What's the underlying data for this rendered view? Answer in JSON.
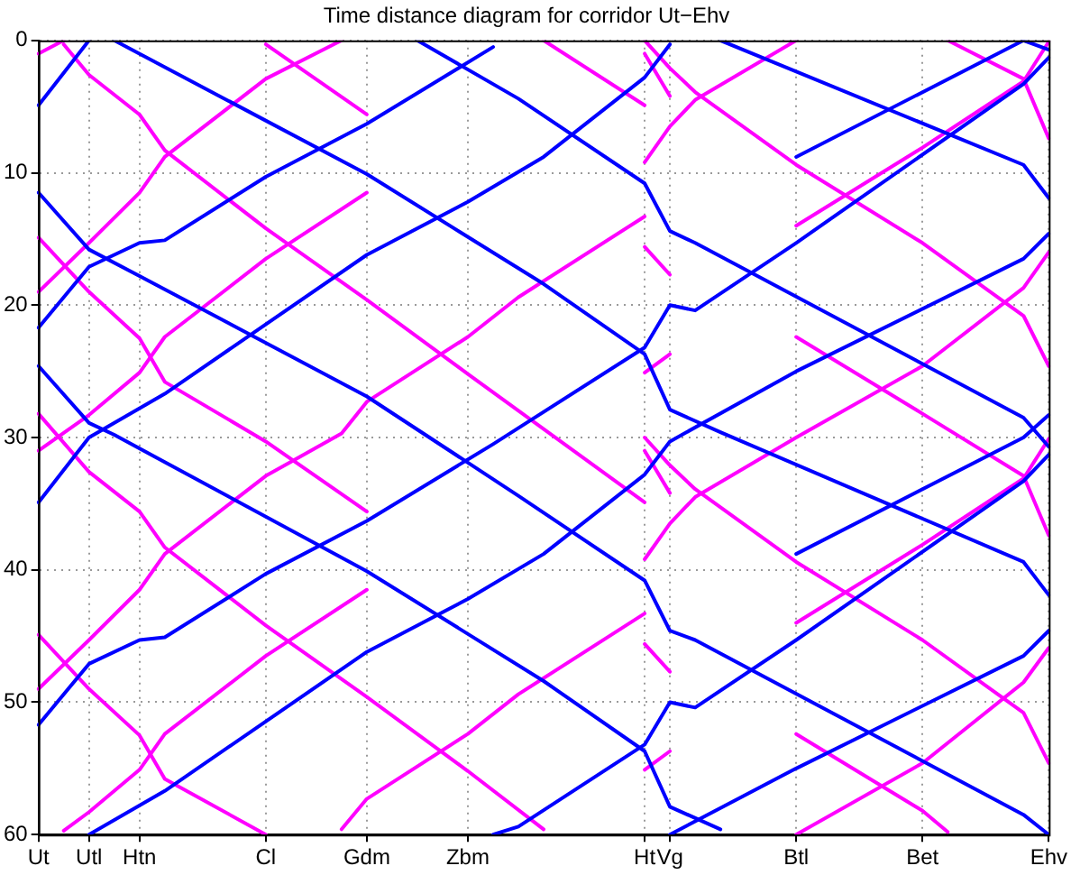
{
  "chart_data": {
    "type": "line",
    "title": "Time distance diagram for corridor Ut−Ehv",
    "categories": [
      "Ut",
      null,
      "Utl",
      null,
      "Htn",
      null,
      null,
      null,
      null,
      "Cl",
      null,
      null,
      null,
      "Gdm",
      null,
      null,
      null,
      "Zbm",
      null,
      null,
      null,
      null,
      null,
      null,
      "Ht",
      "Vg",
      null,
      null,
      null,
      null,
      "Btl",
      null,
      null,
      null,
      null,
      "Bet",
      null,
      null,
      null,
      null,
      "Ehv"
    ],
    "ylim": [
      60,
      0
    ],
    "yticks": [
      0,
      10,
      20,
      30,
      40,
      50,
      60
    ],
    "grid": true,
    "line_style": "solid",
    "series": [
      {
        "color": "#0000ff",
        "values": [
          11.5,
          null,
          15.8,
          null,
          17.8,
          null,
          null,
          null,
          null,
          null,
          null,
          null,
          null,
          26.9,
          null,
          null,
          null,
          null,
          null,
          34.4,
          null,
          null,
          null,
          null,
          40.8,
          44.6,
          45.3,
          null,
          null,
          null,
          null,
          null,
          null,
          null,
          null,
          null,
          null,
          null,
          null,
          58.5,
          60
        ]
      },
      {
        "color": "#0000ff",
        "values": [
          null,
          null,
          null,
          null,
          null,
          null,
          null,
          null,
          null,
          null,
          null,
          null,
          null,
          null,
          null,
          0,
          null,
          null,
          null,
          4.4,
          null,
          null,
          null,
          null,
          10.8,
          14.4,
          15.3,
          null,
          null,
          null,
          null,
          null,
          null,
          null,
          null,
          null,
          null,
          null,
          null,
          28.5,
          30.7
        ]
      },
      {
        "color": "#0000ff",
        "values": [
          null,
          null,
          null,
          null,
          null,
          null,
          null,
          null,
          null,
          null,
          null,
          null,
          null,
          null,
          null,
          null,
          null,
          null,
          null,
          null,
          null,
          null,
          null,
          null,
          null,
          null,
          null,
          null,
          null,
          null,
          null,
          null,
          null,
          null,
          null,
          null,
          null,
          null,
          null,
          0,
          0.7
        ]
      },
      {
        "color": "#0000ff",
        "values": [
          24.6,
          null,
          28.9,
          29.8,
          null,
          null,
          null,
          null,
          null,
          null,
          null,
          null,
          null,
          40.1,
          null,
          null,
          null,
          null,
          null,
          null,
          48.4,
          null,
          null,
          null,
          53.7,
          57.9,
          null,
          59.6,
          null,
          null,
          null,
          null,
          null,
          null,
          null,
          null,
          null,
          null,
          null,
          null,
          null
        ]
      },
      {
        "color": "#0000ff",
        "values": [
          null,
          null,
          null,
          0,
          null,
          null,
          null,
          null,
          null,
          null,
          null,
          null,
          null,
          10.1,
          null,
          null,
          null,
          null,
          null,
          null,
          18.4,
          null,
          null,
          null,
          23.7,
          27.9,
          null,
          29.6,
          null,
          null,
          null,
          null,
          null,
          null,
          null,
          null,
          null,
          null,
          null,
          39.4,
          41.9
        ]
      },
      {
        "color": "#0000ff",
        "values": [
          null,
          null,
          null,
          null,
          null,
          null,
          null,
          null,
          null,
          null,
          null,
          null,
          null,
          null,
          null,
          null,
          null,
          null,
          null,
          null,
          null,
          null,
          null,
          null,
          null,
          null,
          null,
          0,
          null,
          null,
          null,
          null,
          null,
          null,
          null,
          null,
          null,
          null,
          null,
          9.4,
          11.9
        ]
      },
      {
        "color": "#0000ff",
        "values": [
          21.7,
          null,
          17.1,
          null,
          15.3,
          15.1,
          null,
          null,
          null,
          10.3,
          null,
          null,
          null,
          6.3,
          null,
          null,
          null,
          null,
          0.5,
          null,
          null,
          null,
          null,
          null,
          null,
          null,
          null,
          null,
          null,
          null,
          null,
          null,
          null,
          null,
          null,
          null,
          null,
          null,
          null,
          null,
          null
        ]
      },
      {
        "color": "#0000ff",
        "values": [
          51.7,
          null,
          47.1,
          null,
          45.3,
          45.1,
          null,
          null,
          null,
          40.3,
          null,
          null,
          null,
          36.3,
          null,
          null,
          null,
          null,
          30.5,
          null,
          null,
          null,
          null,
          null,
          23.2,
          20,
          20.4,
          null,
          null,
          null,
          15.3,
          null,
          null,
          null,
          null,
          null,
          null,
          null,
          null,
          3.3,
          1.3
        ]
      },
      {
        "color": "#0000ff",
        "values": [
          null,
          null,
          null,
          null,
          null,
          null,
          null,
          null,
          null,
          null,
          null,
          null,
          null,
          null,
          null,
          null,
          null,
          null,
          60,
          59.4,
          null,
          null,
          null,
          null,
          53.2,
          50,
          50.4,
          null,
          null,
          null,
          45.3,
          null,
          null,
          null,
          null,
          null,
          null,
          null,
          null,
          33.3,
          31.3
        ]
      },
      {
        "color": "#0000ff",
        "values": [
          4.9,
          null,
          0,
          null,
          null,
          null,
          null,
          null,
          null,
          null,
          null,
          null,
          null,
          null,
          null,
          null,
          null,
          null,
          null,
          null,
          null,
          null,
          null,
          null,
          null,
          null,
          null,
          null,
          null,
          null,
          null,
          null,
          null,
          null,
          null,
          null,
          null,
          null,
          null,
          null,
          null
        ]
      },
      {
        "color": "#0000ff",
        "values": [
          34.9,
          null,
          30,
          null,
          null,
          26.7,
          null,
          null,
          null,
          null,
          null,
          null,
          null,
          16.2,
          null,
          null,
          null,
          12.2,
          null,
          null,
          8.8,
          null,
          null,
          null,
          2.8,
          0.3,
          null,
          null,
          null,
          null,
          null,
          null,
          null,
          null,
          null,
          null,
          null,
          null,
          null,
          null,
          null
        ]
      },
      {
        "color": "#0000ff",
        "values": [
          null,
          null,
          60,
          null,
          null,
          56.7,
          null,
          null,
          null,
          null,
          null,
          null,
          null,
          46.2,
          null,
          null,
          null,
          42.2,
          null,
          null,
          38.8,
          null,
          null,
          null,
          32.8,
          30.3,
          null,
          null,
          null,
          null,
          25,
          null,
          null,
          null,
          null,
          null,
          null,
          null,
          null,
          16.5,
          14.6
        ]
      },
      {
        "color": "#0000ff",
        "values": [
          null,
          null,
          null,
          null,
          null,
          null,
          null,
          null,
          null,
          null,
          null,
          null,
          null,
          null,
          null,
          null,
          null,
          null,
          null,
          null,
          null,
          null,
          null,
          null,
          null,
          60,
          null,
          null,
          null,
          null,
          55,
          null,
          null,
          null,
          null,
          null,
          null,
          null,
          null,
          46.5,
          44.6
        ]
      },
      {
        "color": "#0000ff",
        "values": [
          null,
          null,
          null,
          null,
          null,
          null,
          null,
          null,
          null,
          null,
          null,
          null,
          null,
          null,
          null,
          null,
          null,
          null,
          null,
          null,
          null,
          null,
          null,
          null,
          null,
          null,
          null,
          null,
          null,
          null,
          8.8,
          null,
          null,
          null,
          null,
          null,
          null,
          null,
          null,
          0,
          null
        ]
      },
      {
        "color": "#0000ff",
        "values": [
          null,
          null,
          null,
          null,
          null,
          null,
          null,
          null,
          null,
          null,
          null,
          null,
          null,
          null,
          null,
          null,
          null,
          null,
          null,
          null,
          null,
          null,
          null,
          null,
          null,
          null,
          null,
          null,
          null,
          null,
          38.8,
          null,
          null,
          null,
          null,
          null,
          null,
          null,
          null,
          30,
          28.3
        ]
      },
      {
        "color": "#ff00ff",
        "values": [
          null,
          0.3,
          2.6,
          null,
          5.6,
          8.3,
          null,
          null,
          null,
          14.2,
          null,
          null,
          null,
          19.6,
          null,
          null,
          null,
          25.2,
          null,
          null,
          null,
          null,
          null,
          null,
          34.9,
          null,
          null,
          null,
          null,
          null,
          null,
          null,
          null,
          null,
          null,
          null,
          null,
          null,
          null,
          null,
          null
        ]
      },
      {
        "color": "#ff00ff",
        "values": [
          28.2,
          null,
          32.6,
          null,
          35.6,
          38.3,
          null,
          null,
          null,
          44.2,
          null,
          null,
          null,
          49.6,
          null,
          null,
          null,
          55.2,
          null,
          null,
          59.6,
          null,
          null,
          null,
          null,
          null,
          null,
          null,
          null,
          null,
          null,
          null,
          null,
          null,
          null,
          null,
          null,
          null,
          null,
          null,
          null
        ]
      },
      {
        "color": "#ff00ff",
        "values": [
          null,
          null,
          null,
          null,
          null,
          null,
          null,
          null,
          null,
          null,
          null,
          null,
          null,
          null,
          null,
          null,
          null,
          null,
          null,
          null,
          0,
          null,
          null,
          null,
          4.9,
          null,
          null,
          null,
          null,
          null,
          null,
          null,
          null,
          null,
          null,
          null,
          null,
          null,
          null,
          null,
          null
        ]
      },
      {
        "color": "#ff00ff",
        "values": [
          14.9,
          null,
          19,
          null,
          22.5,
          25.8,
          null,
          null,
          null,
          30.3,
          null,
          null,
          null,
          35.6,
          null,
          null,
          null,
          null,
          null,
          null,
          null,
          null,
          null,
          null,
          null,
          null,
          null,
          null,
          null,
          null,
          null,
          null,
          null,
          null,
          null,
          null,
          null,
          null,
          null,
          null,
          null
        ]
      },
      {
        "color": "#ff00ff",
        "values": [
          null,
          null,
          null,
          null,
          null,
          null,
          null,
          null,
          null,
          0.3,
          null,
          null,
          null,
          5.6,
          null,
          null,
          null,
          null,
          null,
          null,
          null,
          null,
          null,
          null,
          null,
          null,
          null,
          null,
          null,
          null,
          null,
          null,
          null,
          null,
          null,
          null,
          null,
          null,
          null,
          null,
          null
        ]
      },
      {
        "color": "#ff00ff",
        "values": [
          44.9,
          null,
          49,
          null,
          52.5,
          55.8,
          null,
          null,
          null,
          60,
          null,
          null,
          null,
          null,
          null,
          null,
          null,
          null,
          null,
          null,
          null,
          null,
          null,
          null,
          null,
          null,
          null,
          null,
          null,
          null,
          null,
          null,
          null,
          null,
          null,
          null,
          null,
          null,
          null,
          null,
          null
        ]
      },
      {
        "color": "#ff00ff",
        "values": [
          19,
          null,
          15.3,
          null,
          11.5,
          8.8,
          null,
          null,
          null,
          2.9,
          null,
          null,
          0,
          null,
          null,
          null,
          null,
          null,
          null,
          null,
          null,
          null,
          null,
          null,
          null,
          null,
          null,
          null,
          null,
          null,
          null,
          null,
          null,
          null,
          null,
          null,
          null,
          null,
          null,
          null,
          null
        ]
      },
      {
        "color": "#ff00ff",
        "values": [
          49,
          null,
          45.3,
          null,
          41.5,
          38.8,
          null,
          null,
          null,
          32.9,
          null,
          null,
          29.7,
          27.3,
          null,
          null,
          null,
          22.4,
          null,
          19.4,
          null,
          null,
          null,
          null,
          13.3,
          null,
          null,
          null,
          null,
          null,
          null,
          null,
          null,
          null,
          null,
          null,
          null,
          null,
          null,
          null,
          null
        ]
      },
      {
        "color": "#ff00ff",
        "values": [
          null,
          null,
          null,
          null,
          null,
          null,
          null,
          null,
          null,
          null,
          null,
          null,
          59.6,
          57.3,
          null,
          null,
          null,
          52.4,
          null,
          49.4,
          null,
          null,
          null,
          null,
          43.3,
          null,
          null,
          null,
          null,
          null,
          null,
          null,
          null,
          null,
          null,
          null,
          null,
          null,
          null,
          null,
          null
        ]
      },
      {
        "color": "#ff00ff",
        "values": [
          31,
          null,
          28.3,
          null,
          25.1,
          22.4,
          null,
          null,
          null,
          16.5,
          null,
          null,
          null,
          11.5,
          null,
          null,
          null,
          null,
          null,
          null,
          null,
          null,
          null,
          null,
          null,
          null,
          null,
          null,
          null,
          null,
          null,
          null,
          null,
          null,
          null,
          null,
          null,
          null,
          null,
          null,
          null
        ]
      },
      {
        "color": "#ff00ff",
        "values": [
          1,
          0,
          null,
          null,
          null,
          null,
          null,
          null,
          null,
          null,
          null,
          null,
          null,
          null,
          null,
          null,
          null,
          null,
          null,
          null,
          null,
          null,
          null,
          null,
          null,
          null,
          null,
          null,
          null,
          null,
          null,
          null,
          null,
          null,
          null,
          null,
          null,
          null,
          null,
          null,
          null
        ]
      },
      {
        "color": "#ff00ff",
        "values": [
          null,
          59.7,
          58.3,
          null,
          55.1,
          52.4,
          null,
          null,
          null,
          46.5,
          null,
          null,
          null,
          41.5,
          null,
          null,
          null,
          null,
          null,
          null,
          null,
          null,
          null,
          null,
          null,
          null,
          null,
          null,
          null,
          null,
          null,
          null,
          null,
          null,
          null,
          null,
          null,
          null,
          null,
          null,
          null
        ]
      },
      {
        "color": "#ff00ff",
        "values": [
          null,
          null,
          null,
          null,
          null,
          null,
          null,
          null,
          null,
          null,
          null,
          null,
          null,
          null,
          null,
          null,
          null,
          null,
          null,
          null,
          null,
          null,
          null,
          null,
          0,
          2.1,
          3.9,
          null,
          null,
          null,
          9.4,
          null,
          null,
          null,
          null,
          15.3,
          null,
          null,
          null,
          20.8,
          24.6
        ]
      },
      {
        "color": "#ff00ff",
        "values": [
          null,
          null,
          null,
          null,
          null,
          null,
          null,
          null,
          null,
          null,
          null,
          null,
          null,
          null,
          null,
          null,
          null,
          null,
          null,
          null,
          null,
          null,
          null,
          null,
          30,
          32.1,
          33.9,
          null,
          null,
          null,
          39.4,
          null,
          null,
          null,
          null,
          45.3,
          null,
          null,
          null,
          50.8,
          54.6
        ]
      },
      {
        "color": "#ff00ff",
        "values": [
          null,
          null,
          null,
          null,
          null,
          null,
          null,
          null,
          null,
          null,
          null,
          null,
          null,
          null,
          null,
          null,
          null,
          null,
          null,
          null,
          null,
          null,
          null,
          null,
          null,
          null,
          null,
          null,
          null,
          null,
          22.4,
          null,
          null,
          null,
          null,
          28.2,
          null,
          null,
          null,
          32.9,
          37.4
        ]
      },
      {
        "color": "#ff00ff",
        "values": [
          null,
          null,
          null,
          null,
          null,
          null,
          null,
          null,
          null,
          null,
          null,
          null,
          null,
          null,
          null,
          null,
          null,
          null,
          null,
          null,
          null,
          null,
          null,
          null,
          null,
          null,
          null,
          null,
          null,
          null,
          null,
          null,
          null,
          null,
          null,
          null,
          0,
          null,
          null,
          2.9,
          7.4
        ]
      },
      {
        "color": "#ff00ff",
        "values": [
          null,
          null,
          null,
          null,
          null,
          null,
          null,
          null,
          null,
          null,
          null,
          null,
          null,
          null,
          null,
          null,
          null,
          null,
          null,
          null,
          null,
          null,
          null,
          null,
          null,
          null,
          null,
          null,
          null,
          null,
          52.4,
          null,
          null,
          null,
          null,
          58.2,
          59.8,
          null,
          null,
          null,
          null
        ]
      },
      {
        "color": "#ff00ff",
        "values": [
          null,
          null,
          null,
          null,
          null,
          null,
          null,
          null,
          null,
          null,
          null,
          null,
          null,
          null,
          null,
          null,
          null,
          null,
          null,
          null,
          null,
          null,
          null,
          null,
          null,
          null,
          null,
          null,
          null,
          null,
          14,
          null,
          null,
          null,
          null,
          8.1,
          null,
          null,
          null,
          3.1,
          0.1
        ]
      },
      {
        "color": "#ff00ff",
        "values": [
          null,
          null,
          null,
          null,
          null,
          null,
          null,
          null,
          null,
          null,
          null,
          null,
          null,
          null,
          null,
          null,
          null,
          null,
          null,
          null,
          null,
          null,
          null,
          null,
          null,
          null,
          null,
          null,
          null,
          null,
          44,
          null,
          null,
          null,
          null,
          38.1,
          null,
          null,
          null,
          33.1,
          30.1
        ]
      },
      {
        "color": "#ff00ff",
        "values": [
          null,
          null,
          null,
          null,
          null,
          null,
          null,
          null,
          null,
          null,
          null,
          null,
          null,
          null,
          null,
          null,
          null,
          null,
          null,
          null,
          null,
          null,
          null,
          null,
          9.2,
          6.5,
          4.5,
          null,
          null,
          null,
          0,
          null,
          null,
          null,
          null,
          null,
          null,
          null,
          null,
          null,
          null
        ]
      },
      {
        "color": "#ff00ff",
        "values": [
          null,
          null,
          null,
          null,
          null,
          null,
          null,
          null,
          null,
          null,
          null,
          null,
          null,
          null,
          null,
          null,
          null,
          null,
          null,
          null,
          null,
          null,
          null,
          null,
          39.2,
          36.5,
          34.5,
          null,
          null,
          null,
          30,
          null,
          null,
          null,
          null,
          24.6,
          null,
          null,
          null,
          18.7,
          16
        ]
      },
      {
        "color": "#ff00ff",
        "values": [
          null,
          null,
          null,
          null,
          null,
          null,
          null,
          null,
          null,
          null,
          null,
          null,
          null,
          null,
          null,
          null,
          null,
          null,
          null,
          null,
          null,
          null,
          null,
          null,
          null,
          null,
          null,
          null,
          null,
          null,
          60,
          null,
          null,
          null,
          null,
          54.6,
          null,
          null,
          null,
          48.5,
          45.9
        ]
      },
      {
        "color": "#ff00ff",
        "values": [
          null,
          null,
          null,
          null,
          null,
          null,
          null,
          null,
          null,
          null,
          null,
          null,
          null,
          null,
          null,
          null,
          null,
          null,
          null,
          null,
          null,
          null,
          null,
          null,
          1,
          4.2,
          null,
          null,
          null,
          null,
          null,
          null,
          null,
          null,
          null,
          null,
          null,
          null,
          null,
          null,
          null
        ]
      },
      {
        "color": "#ff00ff",
        "values": [
          null,
          null,
          null,
          null,
          null,
          null,
          null,
          null,
          null,
          null,
          null,
          null,
          null,
          null,
          null,
          null,
          null,
          null,
          null,
          null,
          null,
          null,
          null,
          null,
          15.6,
          17.7,
          null,
          null,
          null,
          null,
          null,
          null,
          null,
          null,
          null,
          null,
          null,
          null,
          null,
          null,
          null
        ]
      },
      {
        "color": "#ff00ff",
        "values": [
          null,
          null,
          null,
          null,
          null,
          null,
          null,
          null,
          null,
          null,
          null,
          null,
          null,
          null,
          null,
          null,
          null,
          null,
          null,
          null,
          null,
          null,
          null,
          null,
          25.1,
          23.7,
          null,
          null,
          null,
          null,
          null,
          null,
          null,
          null,
          null,
          null,
          null,
          null,
          null,
          null,
          null
        ]
      },
      {
        "color": "#ff00ff",
        "values": [
          null,
          null,
          null,
          null,
          null,
          null,
          null,
          null,
          null,
          null,
          null,
          null,
          null,
          null,
          null,
          null,
          null,
          null,
          null,
          null,
          null,
          null,
          null,
          null,
          31,
          34.2,
          null,
          null,
          null,
          null,
          null,
          null,
          null,
          null,
          null,
          null,
          null,
          null,
          null,
          null,
          null
        ]
      },
      {
        "color": "#ff00ff",
        "values": [
          null,
          null,
          null,
          null,
          null,
          null,
          null,
          null,
          null,
          null,
          null,
          null,
          null,
          null,
          null,
          null,
          null,
          null,
          null,
          null,
          null,
          null,
          null,
          null,
          45.6,
          47.7,
          null,
          null,
          null,
          null,
          null,
          null,
          null,
          null,
          null,
          null,
          null,
          null,
          null,
          null,
          null
        ]
      },
      {
        "color": "#ff00ff",
        "values": [
          null,
          null,
          null,
          null,
          null,
          null,
          null,
          null,
          null,
          null,
          null,
          null,
          null,
          null,
          null,
          null,
          null,
          null,
          null,
          null,
          null,
          null,
          null,
          null,
          55.1,
          53.7,
          null,
          null,
          null,
          null,
          null,
          null,
          null,
          null,
          null,
          null,
          null,
          null,
          null,
          null,
          null
        ]
      }
    ]
  }
}
